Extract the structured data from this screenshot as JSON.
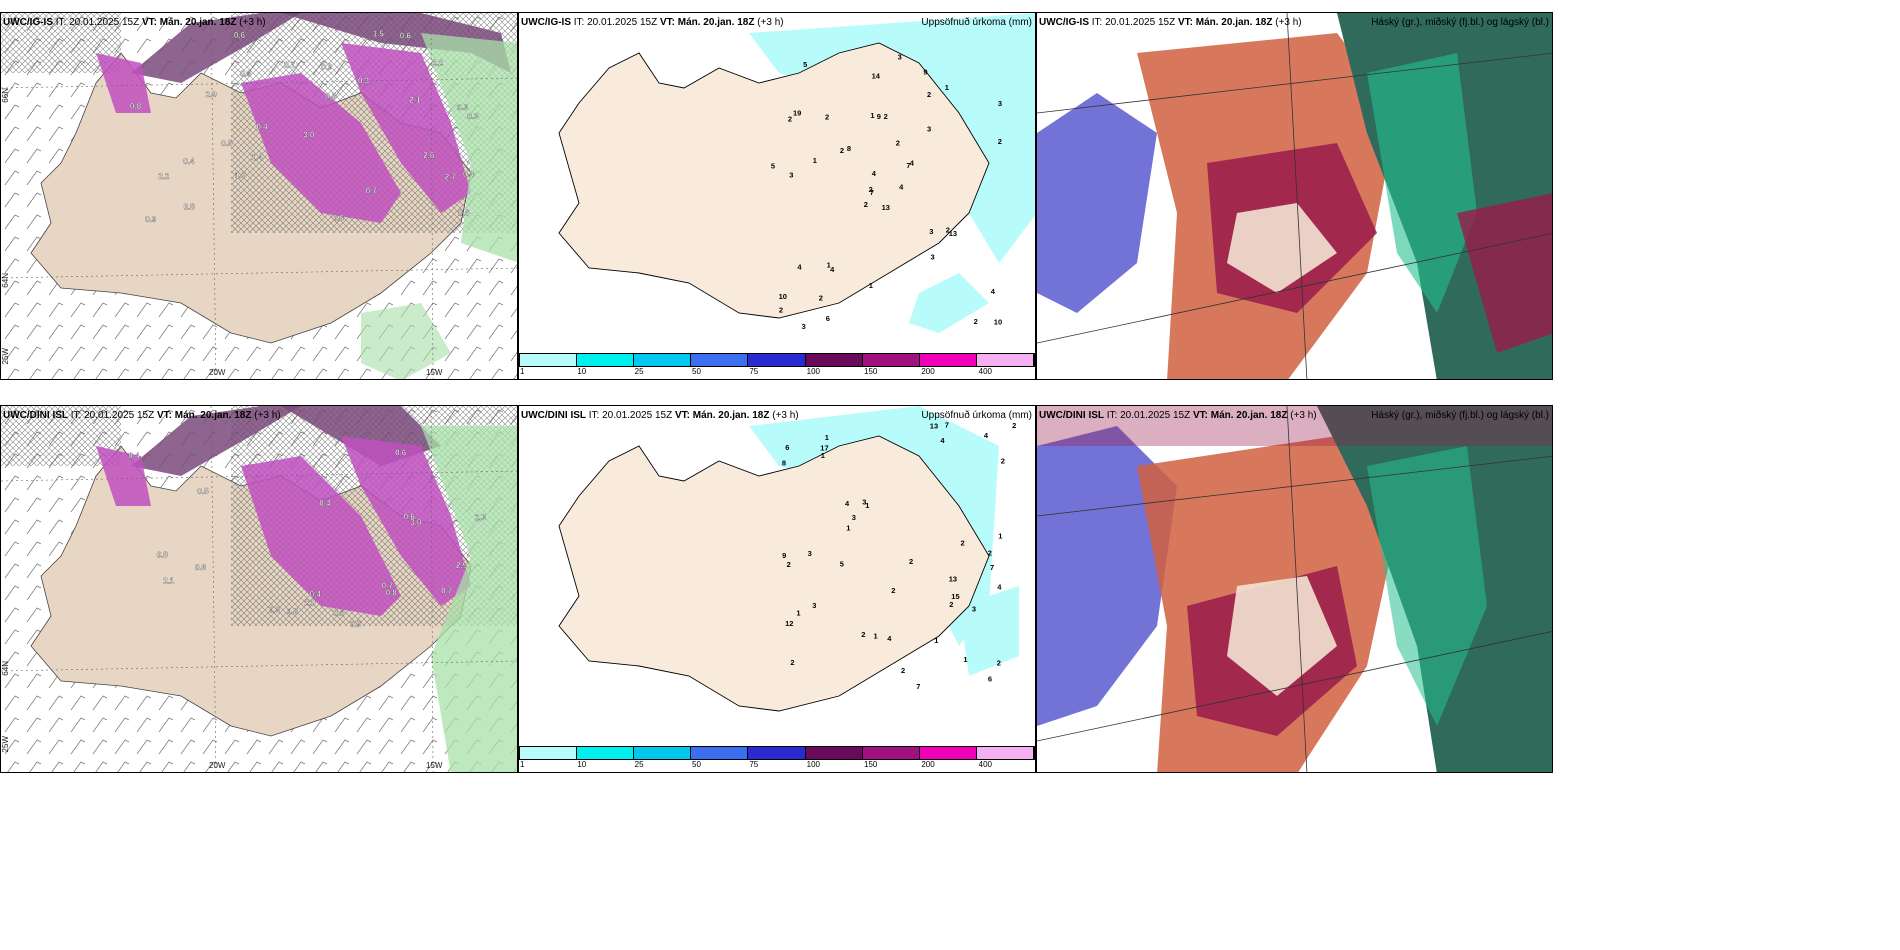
{
  "panels": {
    "p1": {
      "model": "UWC/IG-IS",
      "it_label": "IT:",
      "it": "20.01.2025 15Z",
      "vt_label": "VT:",
      "vt": "Mán. 20.jan. 18Z",
      "lead": "(+3 h)",
      "right": ""
    },
    "p2": {
      "model": "UWC/IG-IS",
      "it_label": "IT:",
      "it": "20.01.2025 15Z",
      "vt_label": "VT:",
      "vt": "Mán. 20.jan. 18Z",
      "lead": "(+3 h)",
      "right": "Uppsöfnuð úrkoma (mm)"
    },
    "p3": {
      "model": "UWC/IG-IS",
      "it_label": "IT:",
      "it": "20.01.2025 15Z",
      "vt_label": "VT:",
      "vt": "Mán. 20.jan. 18Z",
      "lead": "(+3 h)",
      "right": "Háský (gr.), miðský (fj.bl.) og lágský (bl.)"
    },
    "p4": {
      "model": "UWC/DINI ISL",
      "it_label": "IT:",
      "it": "20.01.2025 15Z",
      "vt_label": "VT:",
      "vt": "Mán. 20.jan. 18Z",
      "lead": "(+3 h)",
      "right": ""
    },
    "p5": {
      "model": "UWC/DINI ISL",
      "it_label": "IT:",
      "it": "20.01.2025 15Z",
      "vt_label": "VT:",
      "vt": "Mán. 20.jan. 18Z",
      "lead": "(+3 h)",
      "right": "Uppsöfnuð úrkoma (mm)"
    },
    "p6": {
      "model": "UWC/DINI ISL",
      "it_label": "IT:",
      "it": "20.01.2025 15Z",
      "vt_label": "VT:",
      "vt": "Mán. 20.jan. 18Z",
      "lead": "(+3 h)",
      "right": "Háský (gr.), miðský (fj.bl.) og lágský (bl.)"
    }
  },
  "axis_labels": {
    "lon20": "20W",
    "lon15": "15W",
    "lon25": "25W",
    "lat66": "66N",
    "lat64": "64N"
  },
  "legend": {
    "ticks": [
      "1",
      "10",
      "25",
      "50",
      "75",
      "100",
      "150",
      "200",
      "400"
    ],
    "colors": [
      "#b8fbfb",
      "#00f0f0",
      "#00c8ef",
      "#3c6ef0",
      "#2a2ad0",
      "#6a0a5a",
      "#a0107e",
      "#f000b8",
      "#f4b0f0"
    ]
  },
  "precip_values_top": [
    "13",
    "2",
    "7",
    "10",
    "7",
    "4",
    "9",
    "2",
    "2",
    "4",
    "5",
    "10",
    "3",
    "3",
    "2",
    "3",
    "3",
    "1",
    "2",
    "4",
    "8",
    "2",
    "2",
    "9",
    "4",
    "13",
    "19",
    "14",
    "5",
    "3",
    "2",
    "2",
    "1",
    "4",
    "2",
    "1",
    "1",
    "2",
    "4",
    "2",
    "3",
    "2",
    "1",
    "3",
    "6"
  ],
  "precip_values_bottom": [
    "13",
    "7",
    "2",
    "1",
    "1",
    "1",
    "12",
    "4",
    "4",
    "7",
    "8",
    "9",
    "6",
    "2",
    "2",
    "1",
    "2",
    "2",
    "3",
    "3",
    "2",
    "4",
    "1",
    "4",
    "13",
    "17",
    "15",
    "2",
    "1",
    "2",
    "2",
    "1",
    "3",
    "5",
    "2",
    "3",
    "2",
    "3",
    "4",
    "1",
    "2",
    "7",
    "6",
    "1"
  ],
  "snow_values_top": [
    "0.3",
    "0.3",
    "0.3",
    "0.3",
    "0.4",
    "0.4",
    "1.4",
    "1.5",
    "2.7",
    "2.2",
    "2.9",
    "2.6",
    "2.1",
    "1.7",
    "2.2",
    "3.0",
    "0.5",
    "0.8",
    "0.6",
    "0.7",
    "0.6",
    "0.9",
    "0.8",
    "0.4",
    "0.5",
    "0.6",
    "0.9",
    "0.7",
    "0.6"
  ],
  "snow_values_bottom": [
    "0.3",
    "0.4",
    "0.4",
    "0.4",
    "2.3",
    "2.1",
    "2.0",
    "0.8",
    "0.6",
    "0.5",
    "0.6",
    "0.7",
    "0.8",
    "0.5",
    "0.6",
    "0.5",
    "0.7",
    "0.8",
    "2.9",
    "3.0"
  ]
}
